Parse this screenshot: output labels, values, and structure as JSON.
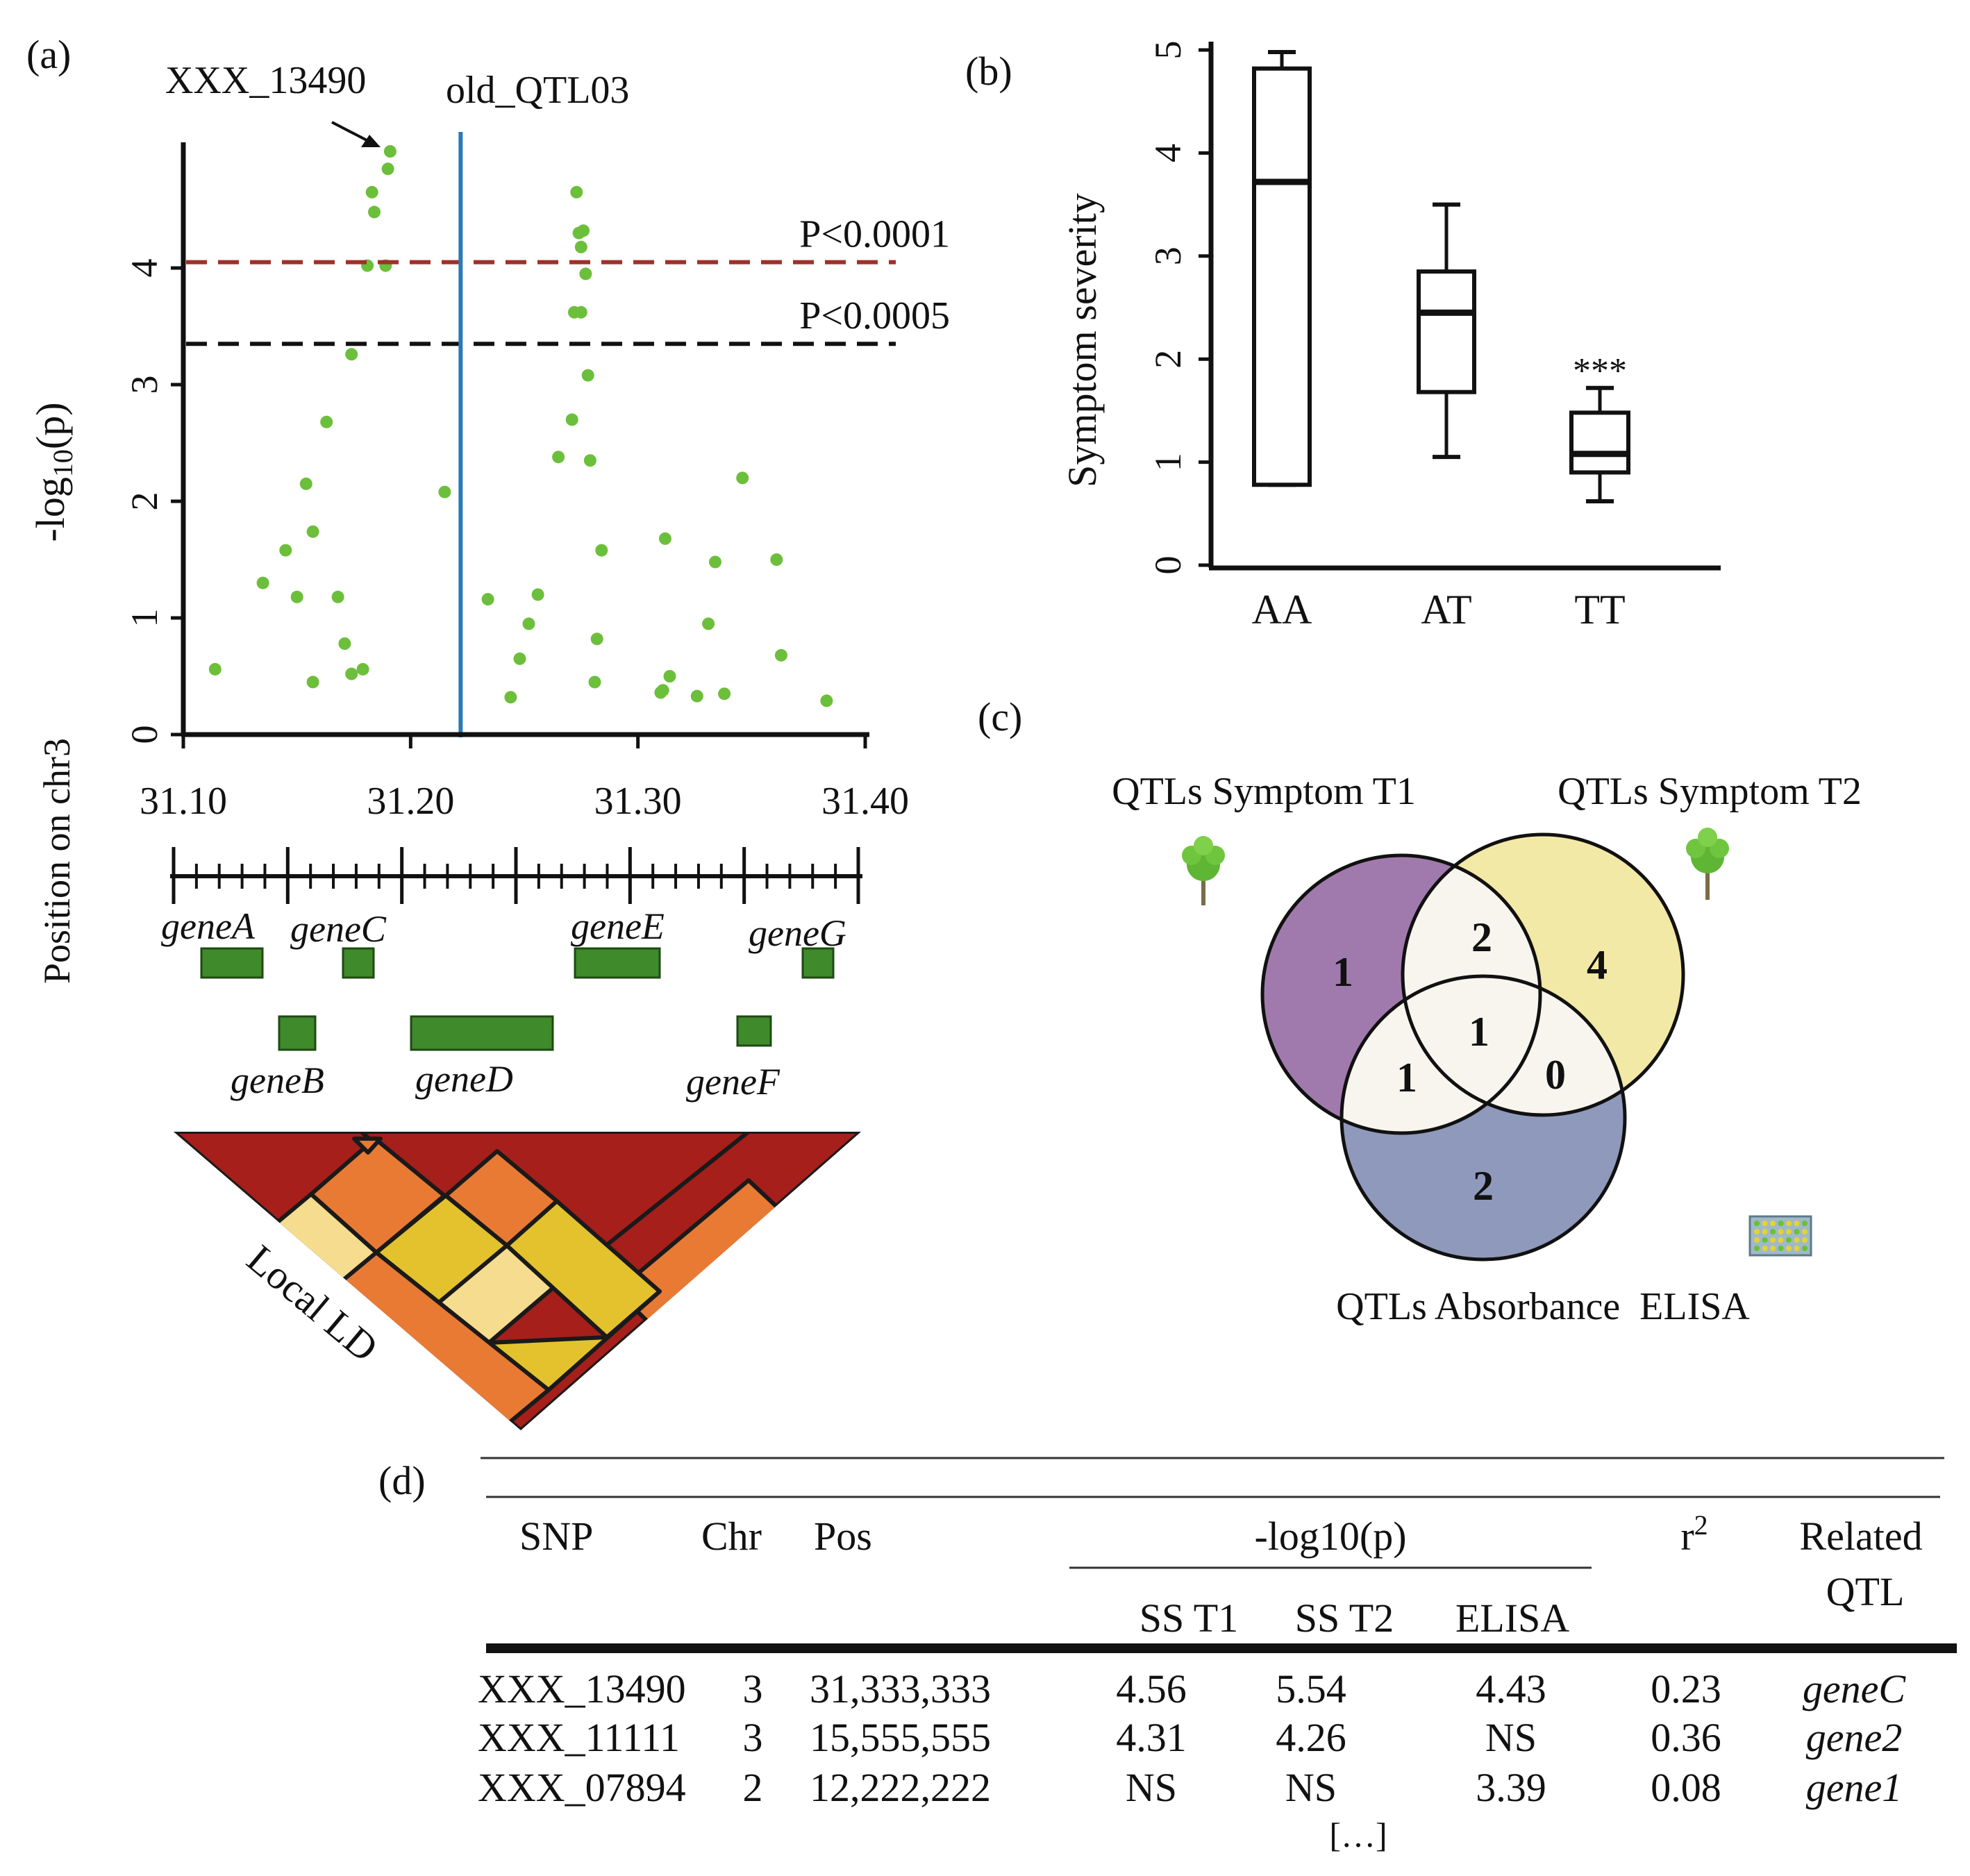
{
  "panel_labels": {
    "a": "(a)",
    "b": "(b)",
    "c": "(c)",
    "d": "(d)"
  },
  "chart_data": [
    {
      "id": "a",
      "type": "scatter",
      "title": "",
      "xlabel": "Position on chr3",
      "ylabel": "-log10(p)",
      "ylabel_parts": {
        "main": "-log",
        "sub": "10",
        "tail": "(p)"
      },
      "xlim": [
        31.1,
        31.4
      ],
      "ylim": [
        0,
        5
      ],
      "xticks": [
        "31.10",
        "31.20",
        "31.30",
        "31.40"
      ],
      "yticks": [
        "0",
        "1",
        "2",
        "3",
        "4"
      ],
      "thresholds": [
        {
          "label": "P<0.0001",
          "y": 4.05,
          "color": "#a0302a"
        },
        {
          "label": "P<0.0005",
          "y": 3.35,
          "color": "#111111"
        }
      ],
      "vline": {
        "label": "old_QTL03",
        "x": 31.222,
        "color": "#2a7ab8"
      },
      "annotation": {
        "label": "XXX_13490"
      },
      "point_color": "#6cbf3a",
      "points": [
        [
          31.114,
          0.56
        ],
        [
          31.135,
          1.3
        ],
        [
          31.145,
          1.58
        ],
        [
          31.15,
          1.18
        ],
        [
          31.154,
          2.15
        ],
        [
          31.157,
          1.74
        ],
        [
          31.157,
          0.45
        ],
        [
          31.163,
          2.68
        ],
        [
          31.168,
          1.18
        ],
        [
          31.171,
          0.78
        ],
        [
          31.174,
          0.52
        ],
        [
          31.174,
          3.26
        ],
        [
          31.179,
          0.56
        ],
        [
          31.181,
          4.02
        ],
        [
          31.183,
          4.65
        ],
        [
          31.184,
          4.48
        ],
        [
          31.189,
          4.02
        ],
        [
          31.19,
          4.85
        ],
        [
          31.191,
          5.0
        ],
        [
          31.215,
          2.08
        ],
        [
          31.234,
          1.16
        ],
        [
          31.244,
          0.32
        ],
        [
          31.248,
          0.65
        ],
        [
          31.252,
          0.95
        ],
        [
          31.256,
          1.2
        ],
        [
          31.265,
          2.38
        ],
        [
          31.271,
          2.7
        ],
        [
          31.272,
          3.62
        ],
        [
          31.273,
          4.65
        ],
        [
          31.274,
          4.3
        ],
        [
          31.275,
          4.18
        ],
        [
          31.275,
          3.62
        ],
        [
          31.276,
          4.32
        ],
        [
          31.277,
          3.95
        ],
        [
          31.278,
          3.08
        ],
        [
          31.279,
          2.35
        ],
        [
          31.281,
          0.45
        ],
        [
          31.282,
          0.82
        ],
        [
          31.284,
          1.58
        ],
        [
          31.31,
          0.36
        ],
        [
          31.311,
          0.38
        ],
        [
          31.312,
          1.68
        ],
        [
          31.314,
          0.5
        ],
        [
          31.326,
          0.33
        ],
        [
          31.331,
          0.95
        ],
        [
          31.334,
          1.48
        ],
        [
          31.338,
          0.35
        ],
        [
          31.346,
          2.2
        ],
        [
          31.361,
          1.5
        ],
        [
          31.363,
          0.68
        ],
        [
          31.383,
          0.29
        ]
      ]
    },
    {
      "id": "b",
      "type": "box",
      "title": "",
      "xlabel": "",
      "ylabel": "Symptom severity",
      "ylim": [
        0,
        5
      ],
      "yticks": [
        "0",
        "1",
        "2",
        "3",
        "4",
        "5"
      ],
      "categories": [
        "AA",
        "AT",
        "TT"
      ],
      "boxes": [
        {
          "name": "AA",
          "min": 0.78,
          "q1": 0.78,
          "median": 3.72,
          "q3": 4.82,
          "max": 4.98
        },
        {
          "name": "AT",
          "min": 1.05,
          "q1": 1.68,
          "median": 2.45,
          "q3": 2.85,
          "max": 3.5
        },
        {
          "name": "TT",
          "min": 0.62,
          "q1": 0.9,
          "median": 1.08,
          "q3": 1.48,
          "max": 1.72
        }
      ],
      "significance": {
        "category": "TT",
        "label": "***"
      }
    }
  ],
  "genes": {
    "top": [
      "geneA",
      "geneC",
      "geneE",
      "geneG"
    ],
    "bottom": [
      "geneB",
      "geneD",
      "geneF"
    ],
    "color": "#3f8a2a"
  },
  "ld": {
    "label": "Local LD"
  },
  "venn": {
    "sets": [
      {
        "name": "QTLs Symptom T1",
        "color": "#a07aad"
      },
      {
        "name": "QTLs Symptom T2",
        "color": "#f3e9a6"
      },
      {
        "name": "QTLs Absorbance  ELISA",
        "color": "#8f99bc"
      }
    ],
    "counts": {
      "t1_only": "1",
      "t2_only": "4",
      "elisa_only": "2",
      "t1_t2": "2",
      "t1_elisa": "1",
      "t2_elisa": "0",
      "all": "1"
    }
  },
  "table": {
    "headers": {
      "snp": "SNP",
      "chr": "Chr",
      "pos": "Pos",
      "group": "-log10(p)",
      "ss1": "SS T1",
      "ss2": "SS T2",
      "elisa": "ELISA",
      "r2_main": "r",
      "r2_sup": "2",
      "related1": "Related",
      "related2": "QTL"
    },
    "rows": [
      {
        "snp": "XXX_13490",
        "chr": "3",
        "pos": "31,333,333",
        "ss1": "4.56",
        "ss2": "5.54",
        "elisa": "4.43",
        "r2": "0.23",
        "qtl": "geneC"
      },
      {
        "snp": "XXX_11111",
        "chr": "3",
        "pos": "15,555,555",
        "ss1": "4.31",
        "ss2": "4.26",
        "elisa": "NS",
        "r2": "0.36",
        "qtl": "gene2"
      },
      {
        "snp": "XXX_07894",
        "chr": "2",
        "pos": "12,222,222",
        "ss1": "NS",
        "ss2": "NS",
        "elisa": "3.39",
        "r2": "0.08",
        "qtl": "gene1"
      }
    ],
    "ellipsis": "[…]"
  }
}
